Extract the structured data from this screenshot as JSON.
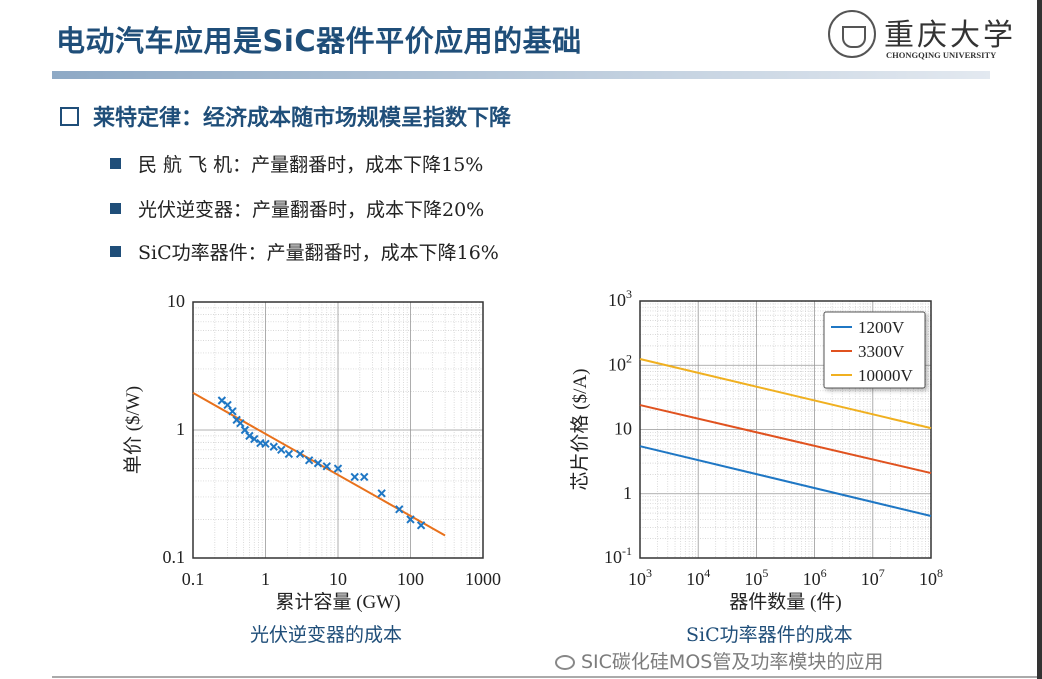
{
  "header": {
    "title": "电动汽车应用是SiC器件平价应用的基础",
    "logo_cn": "重庆大学",
    "logo_en": "CHONGQING UNIVERSITY"
  },
  "section": {
    "heading": "莱特定律：经济成本随市场规模呈指数下降",
    "bullets": [
      "民 航 飞 机：产量翻番时，成本下降15%",
      "光伏逆变器：产量翻番时，成本下降20%",
      "SiC功率器件：产量翻番时，成本下降16%"
    ]
  },
  "watermark": "SIC碳化硅MOS管及功率模块的应用",
  "colors": {
    "accent": "#1f4e79",
    "scatter": "#1f77c4",
    "fit": "#e8711c",
    "s1200": "#1f77c4",
    "s3300": "#e0521f",
    "s10000": "#f0b020"
  },
  "chart_data": [
    {
      "type": "scatter",
      "caption": "光伏逆变器的成本",
      "xlabel": "累计容量 (GW)",
      "ylabel": "单价 ($/W)",
      "xscale": "log",
      "yscale": "log",
      "xlim": [
        0.1,
        1000
      ],
      "ylim": [
        0.1,
        10
      ],
      "grid": true,
      "xticks": [
        "0.1",
        "1",
        "10",
        "100",
        "1000"
      ],
      "yticks": [
        "0.1",
        "1",
        "10"
      ],
      "points": [
        [
          0.25,
          1.7
        ],
        [
          0.3,
          1.57
        ],
        [
          0.35,
          1.4
        ],
        [
          0.4,
          1.2
        ],
        [
          0.45,
          1.13
        ],
        [
          0.52,
          1.0
        ],
        [
          0.6,
          0.9
        ],
        [
          0.7,
          0.85
        ],
        [
          0.85,
          0.79
        ],
        [
          1.0,
          0.78
        ],
        [
          1.3,
          0.74
        ],
        [
          1.65,
          0.7
        ],
        [
          2.1,
          0.65
        ],
        [
          3,
          0.65
        ],
        [
          4,
          0.58
        ],
        [
          5.3,
          0.55
        ],
        [
          7,
          0.52
        ],
        [
          10,
          0.5
        ],
        [
          17,
          0.43
        ],
        [
          23,
          0.43
        ],
        [
          40,
          0.32
        ],
        [
          70,
          0.24
        ],
        [
          100,
          0.2
        ],
        [
          140,
          0.18
        ]
      ],
      "fit_line": [
        [
          0.1,
          1.95
        ],
        [
          300,
          0.15
        ]
      ]
    },
    {
      "type": "line",
      "caption": "SiC功率器件的成本",
      "xlabel": "器件数量 (件)",
      "ylabel": "芯片价格 ($/A)",
      "xscale": "log",
      "yscale": "log",
      "xlim": [
        1000,
        100000000
      ],
      "ylim": [
        0.1,
        1000
      ],
      "grid": true,
      "legend": "top-right",
      "xticks": [
        {
          "b": "10",
          "e": "3"
        },
        {
          "b": "10",
          "e": "4"
        },
        {
          "b": "10",
          "e": "5"
        },
        {
          "b": "10",
          "e": "6"
        },
        {
          "b": "10",
          "e": "7"
        },
        {
          "b": "10",
          "e": "8"
        }
      ],
      "yticks": [
        {
          "b": "10",
          "e": "-1"
        },
        {
          "b": "1",
          "e": ""
        },
        {
          "b": "10",
          "e": ""
        },
        {
          "b": "10",
          "e": "2"
        },
        {
          "b": "10",
          "e": "3"
        }
      ],
      "series": [
        {
          "name": "1200V",
          "x": [
            1000,
            100000000
          ],
          "values": [
            5.5,
            0.45
          ]
        },
        {
          "name": "3300V",
          "x": [
            1000,
            100000000
          ],
          "values": [
            24,
            2.1
          ]
        },
        {
          "name": "10000V",
          "x": [
            1000,
            100000000
          ],
          "values": [
            125,
            10.5
          ]
        }
      ]
    }
  ]
}
